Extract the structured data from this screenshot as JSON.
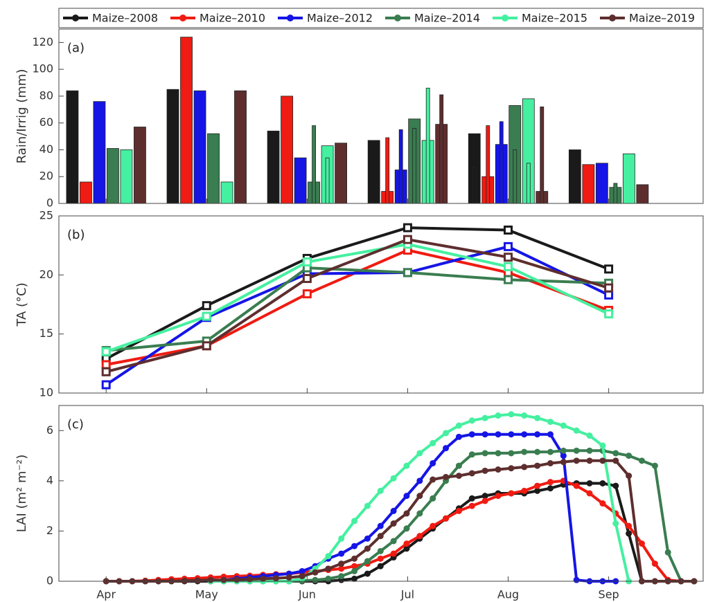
{
  "chart_data": [
    {
      "type": "bar",
      "panel_label": "(a)",
      "y_label": "Rain/Irrig (mm)",
      "x": [
        4,
        5,
        6,
        7,
        8,
        9
      ],
      "xlim": [
        3.53,
        9.94
      ],
      "xticks": [
        4,
        5,
        6,
        7,
        8,
        9
      ],
      "ylim": [
        0,
        130
      ],
      "yticks": [
        0,
        20,
        40,
        60,
        80,
        100,
        120
      ],
      "grid": false,
      "legend": "top",
      "series": [
        {
          "name": "Maize–2008",
          "color": "#1a1a1a",
          "values": [
            84,
            85,
            54,
            47,
            52,
            40
          ],
          "irrigation": [
            null,
            null,
            null,
            null,
            27,
            null
          ]
        },
        {
          "name": "Maize–2010",
          "color": "#f01b12",
          "values": [
            16,
            124,
            80,
            9,
            20,
            29
          ],
          "irrigation": [
            null,
            null,
            null,
            49,
            58,
            null
          ]
        },
        {
          "name": "Maize–2012",
          "color": "#1515e6",
          "values": [
            76,
            84,
            34,
            25,
            44,
            30
          ],
          "irrigation": [
            null,
            null,
            null,
            55,
            61,
            null
          ]
        },
        {
          "name": "Maize–2014",
          "color": "#3a7d50",
          "values": [
            41,
            52,
            16,
            63,
            73,
            12
          ],
          "irrigation": [
            null,
            null,
            58,
            56,
            40,
            15
          ]
        },
        {
          "name": "Maize–2015",
          "color": "#45f0a0",
          "values": [
            40,
            16,
            43,
            47,
            78,
            37
          ],
          "irrigation": [
            null,
            null,
            34,
            86,
            30,
            null
          ]
        },
        {
          "name": "Maize–2019",
          "color": "#5e2e2e",
          "values": [
            57,
            84,
            45,
            59,
            9,
            14
          ],
          "irrigation": [
            null,
            null,
            null,
            81,
            72,
            null
          ]
        }
      ]
    },
    {
      "type": "line",
      "marker": "square",
      "panel_label": "(b)",
      "y_label": "TA (°C)",
      "x": [
        4,
        5,
        6,
        7,
        8,
        9
      ],
      "xlim": [
        3.53,
        9.94
      ],
      "xticks": [
        4,
        5,
        6,
        7,
        8,
        9
      ],
      "ylim": [
        10,
        25
      ],
      "yticks": [
        10,
        15,
        20,
        25
      ],
      "grid": false,
      "series": [
        {
          "color": "#1a1a1a",
          "values": [
            12.9,
            17.4,
            21.4,
            24.0,
            23.8,
            20.5
          ]
        },
        {
          "color": "#f01b12",
          "values": [
            12.4,
            14.0,
            18.4,
            22.1,
            20.2,
            17.0
          ]
        },
        {
          "color": "#1515e6",
          "values": [
            10.7,
            16.4,
            20.1,
            20.2,
            22.4,
            18.3
          ]
        },
        {
          "color": "#3a7d50",
          "values": [
            13.6,
            14.4,
            20.6,
            20.2,
            19.6,
            19.3
          ]
        },
        {
          "color": "#45f0a0",
          "values": [
            13.5,
            16.5,
            21.1,
            22.6,
            20.7,
            16.7
          ]
        },
        {
          "color": "#5e2e2e",
          "values": [
            11.8,
            14.0,
            19.7,
            23.0,
            21.5,
            18.9
          ]
        }
      ]
    },
    {
      "type": "line",
      "marker": "circle",
      "panel_label": "(c)",
      "y_label": "LAI (m² m⁻²)",
      "x": [
        4,
        4.13,
        4.26,
        4.39,
        4.52,
        4.65,
        4.78,
        4.91,
        5.04,
        5.17,
        5.3,
        5.43,
        5.56,
        5.69,
        5.82,
        5.95,
        6.08,
        6.21,
        6.34,
        6.47,
        6.6,
        6.73,
        6.86,
        6.99,
        7.12,
        7.25,
        7.38,
        7.51,
        7.64,
        7.77,
        7.9,
        8.03,
        8.16,
        8.29,
        8.42,
        8.55,
        8.68,
        8.81,
        8.94,
        9.07,
        9.2,
        9.33,
        9.46,
        9.59,
        9.72,
        9.85
      ],
      "xlim": [
        3.53,
        9.94
      ],
      "xticks": [
        {
          "value": 4,
          "label": "Apr"
        },
        {
          "value": 5,
          "label": "May"
        },
        {
          "value": 6,
          "label": "Jun"
        },
        {
          "value": 7,
          "label": "Jul"
        },
        {
          "value": 8,
          "label": "Aug"
        },
        {
          "value": 9,
          "label": "Sep"
        }
      ],
      "ylim": [
        0,
        7
      ],
      "yticks": [
        0,
        2,
        4,
        6
      ],
      "grid": false,
      "series": [
        {
          "color": "#1a1a1a",
          "values": [
            0,
            0,
            0,
            0,
            0,
            0,
            0,
            0,
            0,
            0,
            0,
            0,
            0,
            0,
            0,
            0,
            0,
            0,
            0.05,
            0.1,
            0.3,
            0.6,
            0.95,
            1.3,
            1.7,
            2.1,
            2.5,
            2.9,
            3.3,
            3.4,
            3.5,
            3.5,
            3.5,
            3.6,
            3.7,
            3.85,
            3.9,
            3.9,
            3.9,
            3.8,
            1.9,
            0,
            0,
            0,
            0,
            0
          ]
        },
        {
          "color": "#f01b12",
          "values": [
            0,
            0,
            0,
            0.02,
            0.05,
            0.08,
            0.1,
            0.12,
            0.15,
            0.18,
            0.2,
            0.22,
            0.25,
            0.28,
            0.3,
            0.35,
            0.4,
            0.45,
            0.5,
            0.6,
            0.7,
            0.9,
            1.1,
            1.5,
            1.8,
            2.2,
            2.5,
            2.8,
            3.0,
            3.2,
            3.4,
            3.5,
            3.6,
            3.8,
            3.95,
            4.0,
            3.8,
            3.5,
            3.1,
            2.7,
            2.2,
            1.5,
            0.7,
            0.05,
            0,
            0
          ]
        },
        {
          "color": "#1515e6",
          "values": [
            null,
            null,
            null,
            null,
            null,
            null,
            null,
            null,
            0,
            0.05,
            0.1,
            0.15,
            0.2,
            0.25,
            0.3,
            0.4,
            0.6,
            0.9,
            1.1,
            1.4,
            1.7,
            2.2,
            2.8,
            3.4,
            4.0,
            4.7,
            5.3,
            5.75,
            5.85,
            5.85,
            5.85,
            5.85,
            5.85,
            5.85,
            5.85,
            5.0,
            0.05,
            0,
            0,
            0,
            null,
            null,
            null,
            null,
            null,
            null
          ]
        },
        {
          "color": "#3a7d50",
          "values": [
            null,
            null,
            null,
            null,
            null,
            null,
            null,
            null,
            0,
            0,
            0,
            0,
            0,
            0,
            0,
            0.02,
            0.05,
            0.1,
            0.2,
            0.4,
            0.8,
            1.2,
            1.6,
            2.1,
            2.7,
            3.3,
            4.0,
            4.6,
            5.05,
            5.1,
            5.1,
            5.1,
            5.15,
            5.15,
            5.15,
            5.2,
            5.2,
            5.2,
            5.2,
            5.1,
            5.0,
            4.8,
            4.6,
            1.15,
            0,
            0
          ]
        },
        {
          "color": "#45f0a0",
          "values": [
            null,
            null,
            null,
            null,
            null,
            null,
            null,
            null,
            0,
            0,
            0,
            0,
            0,
            0,
            0,
            0.1,
            0.5,
            1.0,
            1.7,
            2.4,
            3.0,
            3.6,
            4.1,
            4.6,
            5.1,
            5.5,
            5.9,
            6.2,
            6.4,
            6.5,
            6.6,
            6.65,
            6.6,
            6.5,
            6.35,
            6.2,
            6.0,
            5.8,
            5.4,
            2.3,
            0,
            null,
            null,
            null,
            null,
            null
          ]
        },
        {
          "color": "#5e2e2e",
          "values": [
            0,
            0,
            0,
            0,
            0,
            0,
            0.02,
            0.03,
            0.05,
            0.05,
            0.06,
            0.08,
            0.1,
            0.12,
            0.15,
            0.2,
            0.35,
            0.5,
            0.7,
            0.9,
            1.3,
            1.8,
            2.3,
            2.7,
            3.4,
            4.05,
            4.15,
            4.2,
            4.3,
            4.4,
            4.45,
            4.5,
            4.55,
            4.6,
            4.7,
            4.75,
            4.8,
            4.8,
            4.8,
            4.8,
            4.2,
            0,
            0,
            0,
            0,
            0
          ]
        }
      ]
    }
  ]
}
